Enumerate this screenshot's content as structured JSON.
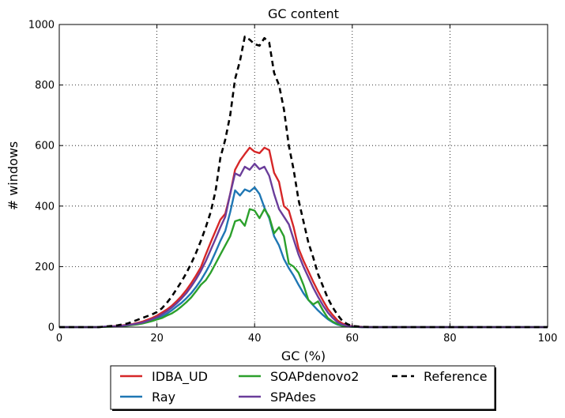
{
  "chart_data": {
    "type": "line",
    "title": "GC content",
    "xlabel": "GC (%)",
    "ylabel": "# windows",
    "xlim": [
      0,
      100
    ],
    "ylim": [
      0,
      1000
    ],
    "xticks": [
      0,
      20,
      40,
      60,
      80,
      100
    ],
    "yticks": [
      0,
      200,
      400,
      600,
      800,
      1000
    ],
    "grid": true,
    "legend_position": "bottom-center",
    "series": [
      {
        "name": "IDBA_UD",
        "color": "#d62728",
        "style": "solid",
        "x": [
          0,
          2,
          4,
          6,
          8,
          10,
          12,
          14,
          15,
          16,
          17,
          18,
          19,
          20,
          21,
          22,
          23,
          24,
          25,
          26,
          27,
          28,
          29,
          30,
          31,
          32,
          33,
          34,
          35,
          36,
          37,
          38,
          39,
          40,
          41,
          42,
          43,
          44,
          45,
          46,
          47,
          48,
          49,
          50,
          51,
          52,
          53,
          54,
          55,
          56,
          57,
          58,
          59,
          60,
          62,
          65,
          70,
          80,
          90,
          100
        ],
        "values": [
          0,
          0,
          0,
          0,
          0,
          2,
          4,
          8,
          10,
          14,
          18,
          24,
          30,
          38,
          48,
          58,
          70,
          85,
          102,
          122,
          145,
          170,
          198,
          240,
          280,
          318,
          355,
          375,
          440,
          520,
          550,
          572,
          593,
          580,
          575,
          593,
          585,
          510,
          480,
          400,
          385,
          330,
          260,
          220,
          185,
          150,
          118,
          88,
          60,
          40,
          22,
          12,
          6,
          3,
          1,
          0,
          0,
          0,
          0,
          0
        ]
      },
      {
        "name": "Ray",
        "color": "#1f77b4",
        "style": "solid",
        "x": [
          0,
          2,
          4,
          6,
          8,
          10,
          12,
          14,
          15,
          16,
          17,
          18,
          19,
          20,
          21,
          22,
          23,
          24,
          25,
          26,
          27,
          28,
          29,
          30,
          31,
          32,
          33,
          34,
          35,
          36,
          37,
          38,
          39,
          40,
          41,
          42,
          43,
          44,
          45,
          46,
          47,
          48,
          49,
          50,
          51,
          52,
          53,
          54,
          55,
          56,
          57,
          58,
          59,
          60,
          62,
          65,
          70,
          80,
          90,
          100
        ],
        "values": [
          0,
          0,
          0,
          0,
          0,
          2,
          3,
          6,
          8,
          10,
          13,
          18,
          22,
          28,
          35,
          44,
          55,
          68,
          80,
          95,
          112,
          132,
          155,
          182,
          212,
          248,
          285,
          318,
          380,
          452,
          435,
          455,
          448,
          462,
          440,
          395,
          360,
          300,
          270,
          225,
          195,
          170,
          140,
          112,
          90,
          72,
          55,
          40,
          26,
          16,
          8,
          4,
          2,
          1,
          0,
          0,
          0,
          0,
          0,
          0
        ]
      },
      {
        "name": "SOAPdenovo2",
        "color": "#2ca02c",
        "style": "solid",
        "x": [
          0,
          2,
          4,
          6,
          8,
          10,
          12,
          14,
          15,
          16,
          17,
          18,
          19,
          20,
          21,
          22,
          23,
          24,
          25,
          26,
          27,
          28,
          29,
          30,
          31,
          32,
          33,
          34,
          35,
          36,
          37,
          38,
          39,
          40,
          41,
          42,
          43,
          44,
          45,
          46,
          47,
          48,
          49,
          50,
          51,
          52,
          53,
          54,
          55,
          56,
          57,
          58,
          59,
          60,
          62,
          65,
          70,
          80,
          90,
          100
        ],
        "values": [
          0,
          0,
          0,
          0,
          0,
          1,
          2,
          5,
          7,
          9,
          12,
          16,
          20,
          25,
          30,
          38,
          45,
          55,
          68,
          82,
          98,
          118,
          140,
          155,
          180,
          210,
          240,
          270,
          300,
          350,
          355,
          335,
          390,
          385,
          360,
          390,
          365,
          310,
          330,
          300,
          210,
          200,
          180,
          140,
          90,
          75,
          85,
          55,
          30,
          18,
          10,
          5,
          2,
          1,
          0,
          0,
          0,
          0,
          0,
          0
        ]
      },
      {
        "name": "SPAdes",
        "color": "#6a3d9a",
        "style": "solid",
        "x": [
          0,
          2,
          4,
          6,
          8,
          10,
          12,
          14,
          15,
          16,
          17,
          18,
          19,
          20,
          21,
          22,
          23,
          24,
          25,
          26,
          27,
          28,
          29,
          30,
          31,
          32,
          33,
          34,
          35,
          36,
          37,
          38,
          39,
          40,
          41,
          42,
          43,
          44,
          45,
          46,
          47,
          48,
          49,
          50,
          51,
          52,
          53,
          54,
          55,
          56,
          57,
          58,
          59,
          60,
          62,
          65,
          70,
          80,
          90,
          100
        ],
        "values": [
          0,
          0,
          0,
          0,
          0,
          2,
          3,
          7,
          9,
          12,
          15,
          20,
          26,
          33,
          42,
          52,
          64,
          78,
          94,
          112,
          134,
          158,
          186,
          218,
          255,
          292,
          330,
          365,
          440,
          508,
          500,
          530,
          520,
          540,
          522,
          530,
          500,
          440,
          390,
          365,
          340,
          290,
          240,
          200,
          165,
          130,
          100,
          72,
          48,
          30,
          16,
          8,
          4,
          2,
          0,
          0,
          0,
          0,
          0,
          0
        ]
      },
      {
        "name": "Reference",
        "color": "#000000",
        "style": "dashed",
        "x": [
          0,
          2,
          4,
          6,
          8,
          10,
          12,
          14,
          15,
          16,
          17,
          18,
          19,
          20,
          21,
          22,
          23,
          24,
          25,
          26,
          27,
          28,
          29,
          30,
          31,
          32,
          33,
          34,
          35,
          36,
          37,
          38,
          39,
          40,
          41,
          42,
          43,
          44,
          45,
          46,
          47,
          48,
          49,
          50,
          51,
          52,
          53,
          54,
          55,
          56,
          57,
          58,
          59,
          60,
          62,
          65,
          70,
          80,
          90,
          100
        ],
        "values": [
          0,
          0,
          0,
          0,
          0,
          3,
          6,
          12,
          18,
          24,
          30,
          36,
          42,
          50,
          62,
          80,
          100,
          125,
          150,
          178,
          210,
          245,
          285,
          330,
          380,
          450,
          560,
          620,
          700,
          820,
          880,
          960,
          950,
          935,
          930,
          955,
          940,
          840,
          800,
          720,
          600,
          520,
          420,
          350,
          280,
          230,
          175,
          135,
          95,
          65,
          40,
          20,
          10,
          4,
          1,
          0,
          0,
          0,
          0,
          0
        ]
      }
    ]
  }
}
